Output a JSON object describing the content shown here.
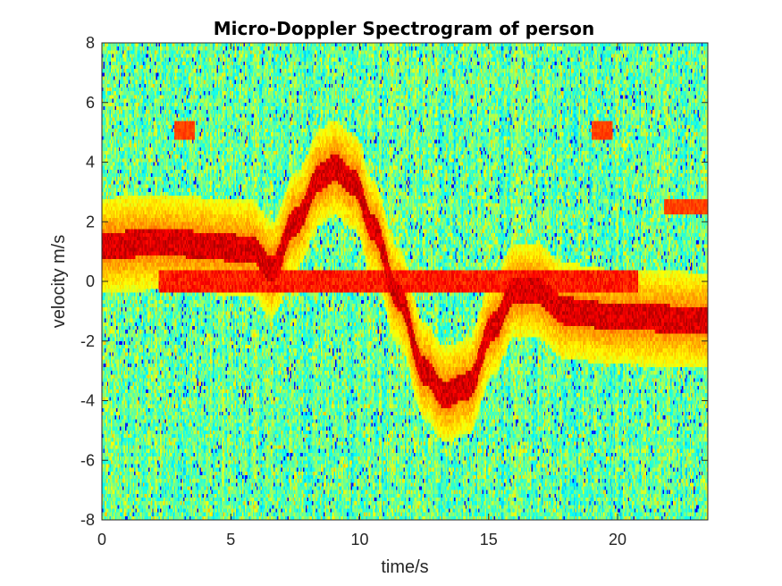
{
  "chart_data": {
    "type": "heatmap",
    "title": "Micro-Doppler Spectrogram of person",
    "xlabel": "time/s",
    "ylabel": "velocity m/s",
    "xlim": [
      0,
      23.5
    ],
    "ylim": [
      -8,
      8
    ],
    "xticks": [
      0,
      5,
      10,
      15,
      20
    ],
    "yticks": [
      -8,
      -6,
      -4,
      -2,
      0,
      2,
      4,
      6,
      8
    ],
    "grid": false,
    "colormap": "jet",
    "background_color": "#6fff8a",
    "features": [
      {
        "kind": "band",
        "t": [
          0,
          2.2,
          5.8,
          6.6
        ],
        "v": [
          1.2,
          1.3,
          1.1,
          0.4
        ]
      },
      {
        "kind": "band",
        "t": [
          6.6,
          7.5,
          8.5,
          9.0,
          9.8,
          10.5,
          11.5
        ],
        "v": [
          0.4,
          2.0,
          3.5,
          3.8,
          3.3,
          1.8,
          -0.5
        ]
      },
      {
        "kind": "band",
        "t": [
          11.5,
          12.5,
          13.3,
          14.2,
          15.2,
          16.0,
          16.8
        ],
        "v": [
          -0.5,
          -3.0,
          -3.8,
          -3.5,
          -1.5,
          -0.3,
          -0.3
        ]
      },
      {
        "kind": "band",
        "t": [
          16.8,
          18.0,
          20.0,
          23.5
        ],
        "v": [
          -0.3,
          -1.0,
          -1.2,
          -1.3
        ]
      },
      {
        "kind": "line",
        "t": [
          2.2,
          20.8
        ],
        "v": 0.0
      },
      {
        "kind": "blob",
        "t": [
          2.8,
          3.6
        ],
        "v": [
          4.8,
          5.4
        ]
      },
      {
        "kind": "blob",
        "t": [
          19.0,
          19.8
        ],
        "v": [
          4.8,
          5.4
        ]
      },
      {
        "kind": "blob",
        "t": [
          21.8,
          23.5
        ],
        "v": [
          2.3,
          2.8
        ]
      }
    ]
  }
}
